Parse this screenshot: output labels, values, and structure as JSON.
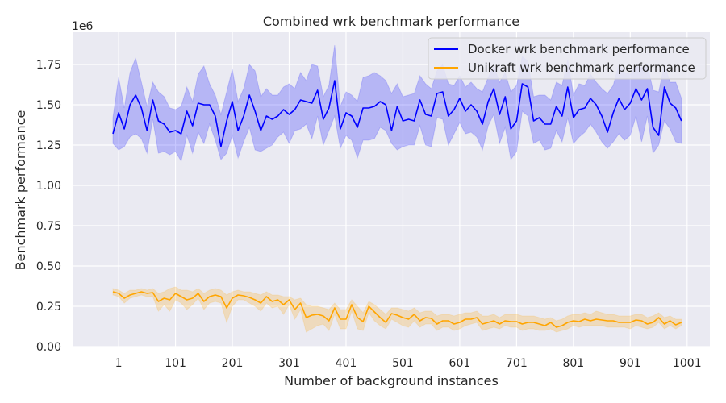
{
  "chart_data": {
    "type": "line",
    "title": "Combined wrk benchmark performance",
    "xlabel": "Number of background instances",
    "ylabel": "Benchmark performance",
    "offset_text": "1e6",
    "xlim": [
      -80,
      1041
    ],
    "ylim": [
      0,
      1950000
    ],
    "xticks": [
      1,
      101,
      201,
      301,
      401,
      501,
      601,
      701,
      801,
      901,
      1001
    ],
    "xtick_labels": [
      "1",
      "101",
      "201",
      "301",
      "401",
      "501",
      "601",
      "701",
      "801",
      "901",
      "1001"
    ],
    "yticks": [
      0,
      250000,
      500000,
      750000,
      1000000,
      1250000,
      1500000,
      1750000
    ],
    "ytick_labels": [
      "0.00",
      "0.25",
      "0.50",
      "0.75",
      "1.00",
      "1.25",
      "1.50",
      "1.75"
    ],
    "grid": true,
    "legend_position": "top-right",
    "background_color": "#eaeaf2",
    "x": [
      -9,
      1,
      11,
      21,
      31,
      41,
      51,
      61,
      71,
      81,
      91,
      101,
      111,
      121,
      131,
      141,
      151,
      161,
      171,
      181,
      191,
      201,
      211,
      221,
      231,
      241,
      251,
      261,
      271,
      281,
      291,
      301,
      311,
      321,
      331,
      341,
      351,
      361,
      371,
      381,
      391,
      401,
      411,
      421,
      431,
      441,
      451,
      461,
      471,
      481,
      491,
      501,
      511,
      521,
      531,
      541,
      551,
      561,
      571,
      581,
      591,
      601,
      611,
      621,
      631,
      641,
      651,
      661,
      671,
      681,
      691,
      701,
      711,
      721,
      731,
      741,
      751,
      761,
      771,
      781,
      791,
      801,
      811,
      821,
      831,
      841,
      851,
      861,
      871,
      881,
      891,
      901,
      911,
      921,
      931,
      941,
      951,
      961,
      971,
      981,
      991
    ],
    "series": [
      {
        "name": "Docker wrk benchmark performance",
        "color": "#0000ff",
        "values": [
          1320000,
          1450000,
          1350000,
          1500000,
          1560000,
          1480000,
          1340000,
          1530000,
          1400000,
          1380000,
          1330000,
          1340000,
          1320000,
          1460000,
          1370000,
          1510000,
          1500000,
          1500000,
          1430000,
          1240000,
          1400000,
          1520000,
          1340000,
          1430000,
          1560000,
          1460000,
          1340000,
          1430000,
          1410000,
          1430000,
          1470000,
          1440000,
          1470000,
          1530000,
          1520000,
          1510000,
          1590000,
          1410000,
          1480000,
          1650000,
          1350000,
          1450000,
          1430000,
          1360000,
          1480000,
          1480000,
          1490000,
          1520000,
          1500000,
          1340000,
          1490000,
          1400000,
          1410000,
          1400000,
          1530000,
          1440000,
          1430000,
          1570000,
          1580000,
          1430000,
          1470000,
          1540000,
          1460000,
          1500000,
          1460000,
          1380000,
          1520000,
          1600000,
          1440000,
          1550000,
          1350000,
          1400000,
          1630000,
          1610000,
          1400000,
          1420000,
          1380000,
          1380000,
          1490000,
          1430000,
          1610000,
          1420000,
          1470000,
          1480000,
          1540000,
          1500000,
          1430000,
          1330000,
          1450000,
          1540000,
          1470000,
          1510000,
          1600000,
          1530000,
          1600000,
          1360000,
          1310000,
          1610000,
          1510000,
          1480000,
          1400000
        ],
        "upper": [
          1420000,
          1670000,
          1480000,
          1700000,
          1790000,
          1640000,
          1490000,
          1640000,
          1580000,
          1550000,
          1480000,
          1470000,
          1490000,
          1610000,
          1520000,
          1690000,
          1740000,
          1630000,
          1560000,
          1440000,
          1580000,
          1720000,
          1520000,
          1600000,
          1750000,
          1710000,
          1550000,
          1600000,
          1560000,
          1560000,
          1610000,
          1630000,
          1600000,
          1700000,
          1650000,
          1750000,
          1740000,
          1550000,
          1620000,
          1870000,
          1490000,
          1580000,
          1560000,
          1520000,
          1670000,
          1680000,
          1700000,
          1680000,
          1650000,
          1570000,
          1630000,
          1550000,
          1560000,
          1570000,
          1680000,
          1630000,
          1600000,
          1710000,
          1750000,
          1630000,
          1620000,
          1680000,
          1610000,
          1640000,
          1600000,
          1580000,
          1670000,
          1740000,
          1640000,
          1700000,
          1580000,
          1620000,
          1800000,
          1770000,
          1550000,
          1560000,
          1560000,
          1530000,
          1640000,
          1620000,
          1780000,
          1560000,
          1630000,
          1620000,
          1690000,
          1640000,
          1600000,
          1570000,
          1620000,
          1750000,
          1700000,
          1690000,
          1740000,
          1730000,
          1750000,
          1590000,
          1580000,
          1750000,
          1640000,
          1640000,
          1540000
        ],
        "lower": [
          1260000,
          1220000,
          1240000,
          1300000,
          1320000,
          1290000,
          1200000,
          1410000,
          1200000,
          1210000,
          1190000,
          1210000,
          1150000,
          1310000,
          1200000,
          1330000,
          1260000,
          1380000,
          1280000,
          1160000,
          1200000,
          1310000,
          1170000,
          1270000,
          1360000,
          1220000,
          1210000,
          1230000,
          1250000,
          1300000,
          1330000,
          1260000,
          1340000,
          1350000,
          1380000,
          1290000,
          1430000,
          1250000,
          1340000,
          1430000,
          1230000,
          1310000,
          1280000,
          1170000,
          1280000,
          1280000,
          1290000,
          1360000,
          1340000,
          1260000,
          1220000,
          1240000,
          1250000,
          1250000,
          1370000,
          1250000,
          1240000,
          1420000,
          1410000,
          1250000,
          1320000,
          1390000,
          1320000,
          1330000,
          1300000,
          1220000,
          1370000,
          1440000,
          1260000,
          1360000,
          1160000,
          1210000,
          1460000,
          1430000,
          1260000,
          1280000,
          1220000,
          1230000,
          1340000,
          1270000,
          1420000,
          1260000,
          1300000,
          1330000,
          1380000,
          1330000,
          1270000,
          1230000,
          1270000,
          1320000,
          1280000,
          1310000,
          1430000,
          1270000,
          1430000,
          1200000,
          1250000,
          1400000,
          1350000,
          1270000,
          1260000
        ]
      },
      {
        "name": "Unikraft wrk benchmark performance",
        "color": "#ffa500",
        "values": [
          340000,
          330000,
          300000,
          320000,
          330000,
          340000,
          330000,
          335000,
          280000,
          300000,
          290000,
          330000,
          310000,
          290000,
          300000,
          330000,
          280000,
          310000,
          320000,
          310000,
          240000,
          300000,
          320000,
          315000,
          305000,
          290000,
          270000,
          310000,
          280000,
          290000,
          260000,
          290000,
          230000,
          270000,
          180000,
          195000,
          200000,
          190000,
          160000,
          240000,
          170000,
          170000,
          260000,
          180000,
          155000,
          250000,
          215000,
          180000,
          150000,
          205000,
          195000,
          180000,
          170000,
          200000,
          160000,
          180000,
          175000,
          140000,
          160000,
          160000,
          140000,
          150000,
          170000,
          170000,
          180000,
          140000,
          150000,
          160000,
          140000,
          160000,
          155000,
          155000,
          140000,
          150000,
          150000,
          140000,
          130000,
          150000,
          120000,
          130000,
          150000,
          160000,
          155000,
          170000,
          160000,
          170000,
          165000,
          160000,
          160000,
          150000,
          150000,
          150000,
          165000,
          160000,
          140000,
          150000,
          180000,
          140000,
          160000,
          135000,
          150000
        ],
        "upper": [
          360000,
          350000,
          330000,
          350000,
          350000,
          360000,
          350000,
          360000,
          330000,
          340000,
          360000,
          370000,
          350000,
          350000,
          340000,
          360000,
          330000,
          350000,
          360000,
          350000,
          320000,
          340000,
          350000,
          340000,
          340000,
          330000,
          320000,
          340000,
          320000,
          320000,
          310000,
          310000,
          290000,
          300000,
          260000,
          250000,
          250000,
          240000,
          230000,
          270000,
          230000,
          230000,
          290000,
          250000,
          210000,
          280000,
          260000,
          230000,
          200000,
          240000,
          240000,
          230000,
          220000,
          240000,
          210000,
          220000,
          220000,
          190000,
          200000,
          200000,
          190000,
          200000,
          210000,
          210000,
          220000,
          190000,
          190000,
          200000,
          180000,
          200000,
          200000,
          200000,
          190000,
          190000,
          190000,
          180000,
          170000,
          180000,
          160000,
          170000,
          190000,
          200000,
          200000,
          210000,
          200000,
          220000,
          210000,
          200000,
          200000,
          190000,
          190000,
          190000,
          200000,
          200000,
          180000,
          190000,
          210000,
          180000,
          190000,
          170000,
          170000
        ],
        "lower": [
          320000,
          310000,
          270000,
          300000,
          310000,
          320000,
          310000,
          310000,
          220000,
          260000,
          220000,
          290000,
          270000,
          230000,
          260000,
          300000,
          230000,
          270000,
          280000,
          270000,
          150000,
          250000,
          290000,
          290000,
          270000,
          250000,
          220000,
          270000,
          240000,
          250000,
          200000,
          260000,
          170000,
          230000,
          90000,
          110000,
          130000,
          140000,
          100000,
          200000,
          110000,
          110000,
          220000,
          110000,
          100000,
          210000,
          160000,
          130000,
          110000,
          170000,
          150000,
          130000,
          120000,
          160000,
          120000,
          140000,
          140000,
          100000,
          120000,
          120000,
          100000,
          110000,
          130000,
          140000,
          150000,
          100000,
          110000,
          120000,
          110000,
          130000,
          120000,
          120000,
          100000,
          110000,
          110000,
          100000,
          100000,
          110000,
          90000,
          100000,
          110000,
          130000,
          120000,
          130000,
          130000,
          130000,
          130000,
          120000,
          120000,
          120000,
          120000,
          110000,
          130000,
          120000,
          110000,
          120000,
          150000,
          110000,
          130000,
          110000,
          130000
        ]
      }
    ]
  }
}
